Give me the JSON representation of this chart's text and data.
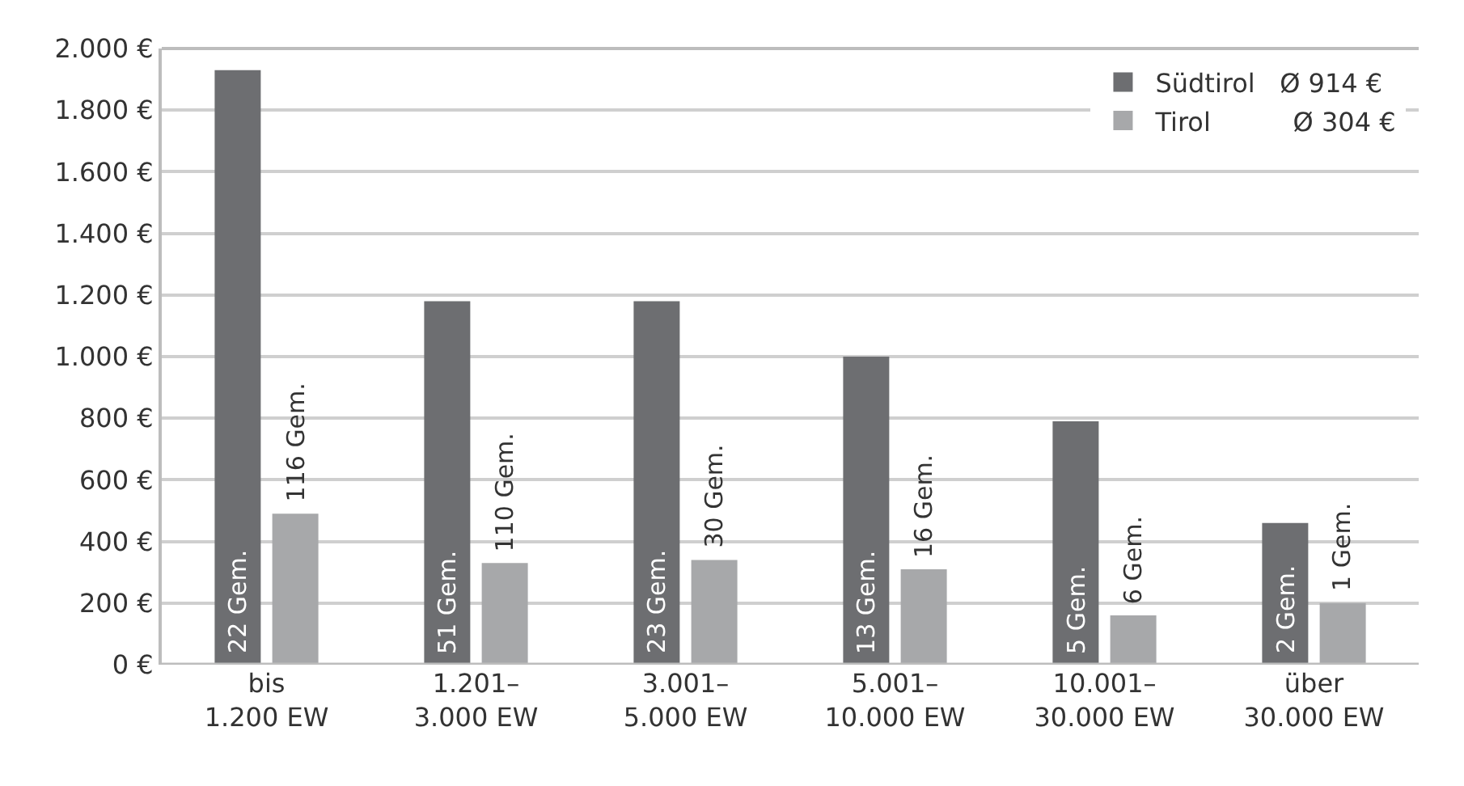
{
  "chart_data": {
    "type": "bar",
    "categories": [
      "bis\n1.200 EW",
      "1.201–\n3.000 EW",
      "3.001–\n5.000 EW",
      "5.001–\n10.000 EW",
      "10.001–\n30.000 EW",
      "über\n30.000 EW"
    ],
    "series": [
      {
        "name": "Südtirol   Ø 914 €",
        "color": "#6d6e71",
        "values": [
          1930,
          1180,
          1180,
          1000,
          790,
          460
        ]
      },
      {
        "name": "Tirol          Ø 304 €",
        "color": "#a7a8aa",
        "values": [
          490,
          330,
          340,
          310,
          160,
          200
        ]
      }
    ],
    "annotations": [
      {
        "text": "22 Gem.",
        "x": "bis\n1.200 EW",
        "y": 0
      },
      {
        "text": "51 Gem.",
        "x": "1.201–\n3.000 EW",
        "y": 0
      },
      {
        "text": "23 Gem.",
        "x": "3.001–\n5.000 EW",
        "y": 0
      },
      {
        "text": "13 Gem.",
        "x": "5.001–\n10.000 EW",
        "y": 0
      },
      {
        "text": "5 Gem.",
        "x": "10.001–\n30.000 EW",
        "y": 0
      },
      {
        "text": "2 Gem.",
        "x": "über\n30.000 EW",
        "y": 0
      },
      {
        "text": "116 Gem.",
        "x": "bis\n1.200 EW",
        "y": 490
      },
      {
        "text": "110 Gem.",
        "x": "1.201–\n3.000 EW",
        "y": 330
      },
      {
        "text": "30 Gem.",
        "x": "3.001–\n5.000 EW",
        "y": 340
      },
      {
        "text": "16 Gem.",
        "x": "5.001–\n10.000 EW",
        "y": 310
      },
      {
        "text": "6 Gem.",
        "x": "10.001–\n30.000 EW",
        "y": 160
      },
      {
        "text": "1 Gem.",
        "x": "über\n30.000 EW",
        "y": 200
      }
    ],
    "ylim": [
      0,
      2000
    ],
    "yticks": [
      {
        "value": 0,
        "label": "0 €"
      },
      {
        "value": 200,
        "label": "200 €"
      },
      {
        "value": 400,
        "label": "400 €"
      },
      {
        "value": 600,
        "label": "600 €"
      },
      {
        "value": 800,
        "label": "800 €"
      },
      {
        "value": 1000,
        "label": "1.000 €"
      },
      {
        "value": 1200,
        "label": "1.200 €"
      },
      {
        "value": 1400,
        "label": "1.400 €"
      },
      {
        "value": 1600,
        "label": "1.600 €"
      },
      {
        "value": 1800,
        "label": "1.800 €"
      },
      {
        "value": 2000,
        "label": "2.000 €"
      }
    ],
    "grid": "y",
    "legend": "top right"
  }
}
